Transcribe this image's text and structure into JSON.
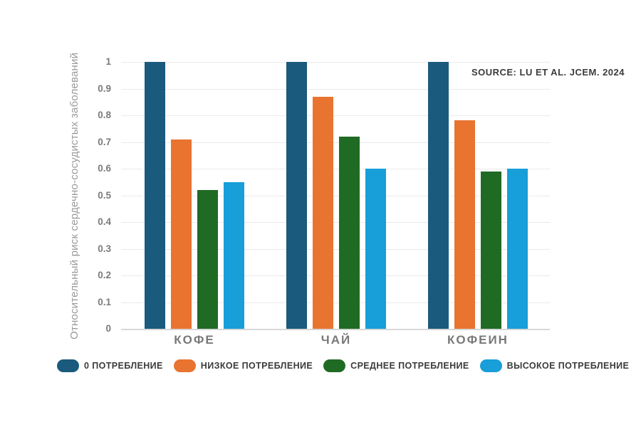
{
  "chart_data": {
    "type": "bar",
    "title": "",
    "ylabel": "Относительный риск сердечно-сосудистых заболеваний",
    "xlabel": "",
    "source": "SOURCE: LU ET AL. JCEM. 2024",
    "categories": [
      "КОФЕ",
      "ЧАЙ",
      "КОФЕИН"
    ],
    "series": [
      {
        "name": "0 ПОТРЕБЛЕНИЕ",
        "color": "#1A5A7C",
        "values": [
          1.0,
          1.0,
          1.0
        ]
      },
      {
        "name": "НИЗКОЕ ПОТРЕБЛЕНИЕ",
        "color": "#E87430",
        "values": [
          0.71,
          0.87,
          0.78
        ]
      },
      {
        "name": "СРЕДНЕЕ ПОТРЕБЛЕНИЕ",
        "color": "#1F6B24",
        "values": [
          0.52,
          0.72,
          0.59
        ]
      },
      {
        "name": "ВЫСОКОЕ ПОТРЕБЛЕНИЕ",
        "color": "#189ED9",
        "values": [
          0.55,
          0.6,
          0.6
        ]
      }
    ],
    "yticks": [
      0,
      0.1,
      0.2,
      0.3,
      0.4,
      0.5,
      0.6,
      0.7,
      0.8,
      0.9,
      1
    ],
    "ylim": [
      0,
      1
    ],
    "grid": "horizontal",
    "legend_position": "bottom"
  }
}
